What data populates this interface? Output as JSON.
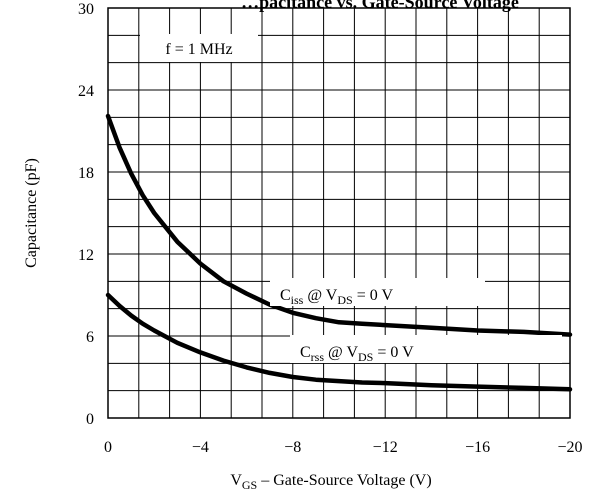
{
  "chart_data": {
    "type": "line",
    "title": "…pacitance vs. Gate-Source Voltage",
    "xlabel": {
      "main": "V",
      "sub": "GS",
      "rest": " – Gate-Source Voltage (V)"
    },
    "ylabel": "Capacitance (pF)",
    "xlim": [
      0,
      -20
    ],
    "ylim": [
      0,
      30
    ],
    "x_ticks": [
      0,
      -4,
      -8,
      -12,
      -16,
      -20
    ],
    "x_tick_labels": [
      "0",
      "−4",
      "−8",
      "−12",
      "−16",
      "−20"
    ],
    "y_ticks": [
      0,
      6,
      12,
      18,
      24,
      30
    ],
    "y_tick_labels": [
      "0",
      "6",
      "12",
      "18",
      "24",
      "30"
    ],
    "grid": true,
    "series": [
      {
        "name": "Ciss @ VDS = 0 V",
        "label": {
          "main": "C",
          "sub": "iss",
          "mid": " @ V",
          "sub2": "DS",
          "rest": " = 0 V"
        },
        "x": [
          0,
          -0.5,
          -1,
          -1.5,
          -2,
          -3,
          -4,
          -5,
          -6,
          -7,
          -8,
          -9,
          -10,
          -11,
          -12,
          -14,
          -16,
          -18,
          -20
        ],
        "y": [
          22.1,
          19.8,
          17.9,
          16.3,
          15.0,
          12.9,
          11.3,
          10.0,
          9.1,
          8.3,
          7.7,
          7.3,
          7.0,
          6.9,
          6.8,
          6.6,
          6.4,
          6.3,
          6.1
        ]
      },
      {
        "name": "Crss @ VDS = 0 V",
        "label": {
          "main": "C",
          "sub": "rss",
          "mid": " @ V",
          "sub2": "DS",
          "rest": " = 0 V"
        },
        "x": [
          0,
          -0.5,
          -1,
          -1.5,
          -2,
          -3,
          -4,
          -5,
          -6,
          -7,
          -8,
          -9,
          -10,
          -11,
          -12,
          -14,
          -16,
          -18,
          -20
        ],
        "y": [
          9.0,
          8.2,
          7.5,
          6.9,
          6.4,
          5.5,
          4.8,
          4.2,
          3.7,
          3.3,
          3.0,
          2.8,
          2.7,
          2.6,
          2.55,
          2.4,
          2.3,
          2.2,
          2.1
        ]
      }
    ],
    "annotations": [
      "f = 1 MHz"
    ]
  }
}
